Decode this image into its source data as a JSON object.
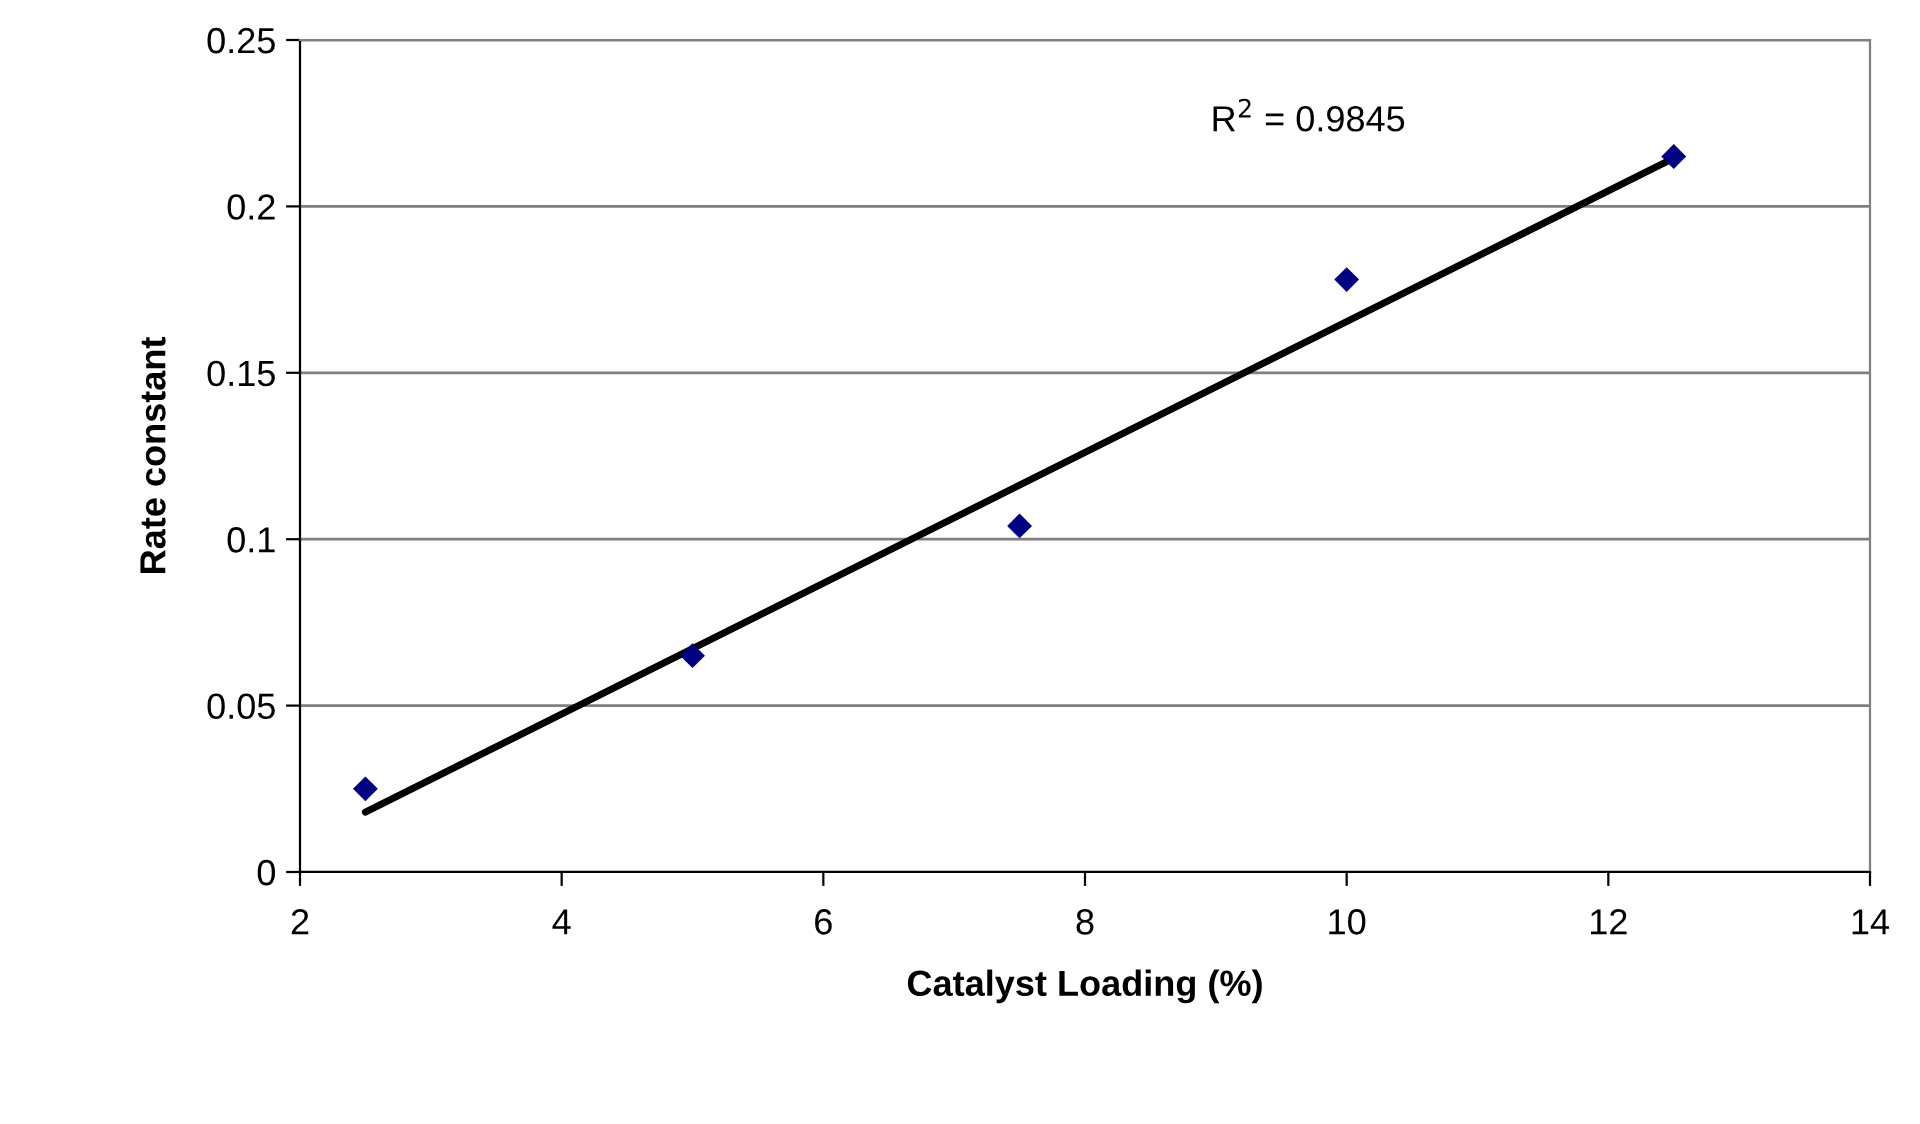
{
  "chart_data": {
    "type": "scatter",
    "xlabel": "Catalyst Loading (%)",
    "ylabel": "Rate constant",
    "xlim": [
      2,
      14
    ],
    "xticks": [
      2,
      4,
      6,
      8,
      10,
      12,
      14
    ],
    "ylim": [
      0,
      0.25
    ],
    "yticks": [
      0,
      0.05,
      0.1,
      0.15,
      0.2,
      0.25
    ],
    "grid": "y",
    "marker": "diamond",
    "x": [
      2.5,
      5,
      7.5,
      10,
      12.5
    ],
    "series": [
      {
        "color": "#000080",
        "values": [
          0.025,
          0.065,
          0.104,
          0.178,
          0.215
        ]
      },
      {
        "type": "line",
        "color": "#000000",
        "x": [
          2.5,
          12.5
        ],
        "values": [
          0.018,
          0.2145
        ],
        "line_style": "solid",
        "marker": "none"
      }
    ],
    "annotations": [
      "R$^{2}$ = 0.9845"
    ]
  }
}
